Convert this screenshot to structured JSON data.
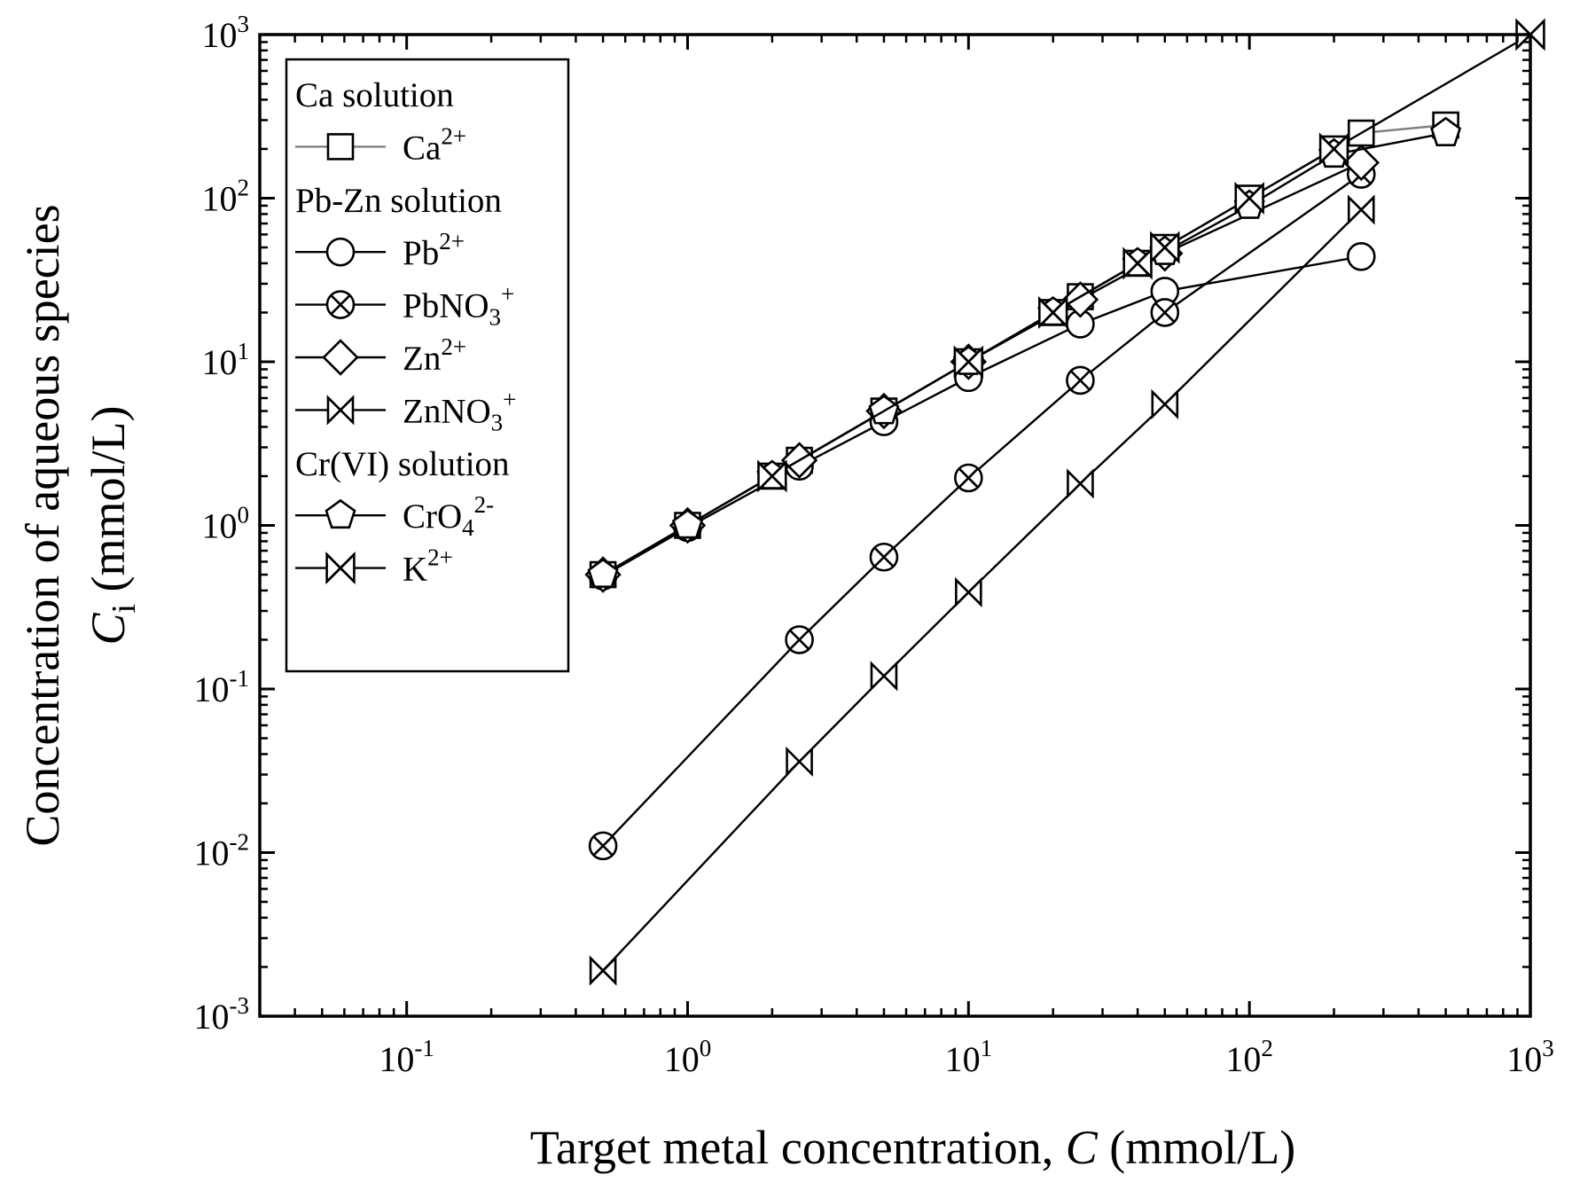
{
  "chart_data": {
    "type": "line",
    "title": "",
    "xlabel": "Target metal concentration, C (mmol/L)",
    "xlabel_prefix": "Target metal concentration, ",
    "xlabel_var": "C",
    "xlabel_suffix": " (mmol/L)",
    "ylabel_line1": "Concentration of aqueous species",
    "ylabel_var": "C",
    "ylabel_sub": "i",
    "ylabel_suffix": " (mmol/L)",
    "x_scale": "log",
    "y_scale": "log",
    "xlim": [
      0.03,
      1000
    ],
    "ylim": [
      0.001,
      1000
    ],
    "x_ticks": [
      {
        "value": 0.1,
        "base": "10",
        "exp": "-1"
      },
      {
        "value": 1,
        "base": "10",
        "exp": "0"
      },
      {
        "value": 10,
        "base": "10",
        "exp": "1"
      },
      {
        "value": 100,
        "base": "10",
        "exp": "2"
      },
      {
        "value": 1000,
        "base": "10",
        "exp": "3"
      }
    ],
    "y_ticks": [
      {
        "value": 0.001,
        "base": "10",
        "exp": "-3"
      },
      {
        "value": 0.01,
        "base": "10",
        "exp": "-2"
      },
      {
        "value": 0.1,
        "base": "10",
        "exp": "-1"
      },
      {
        "value": 1,
        "base": "10",
        "exp": "0"
      },
      {
        "value": 10,
        "base": "10",
        "exp": "1"
      },
      {
        "value": 100,
        "base": "10",
        "exp": "2"
      },
      {
        "value": 1000,
        "base": "10",
        "exp": "3"
      }
    ],
    "grid": false,
    "legend_position": "top-left",
    "series": [
      {
        "name": "Ca2+",
        "label": "Ca",
        "sup": "2+",
        "sub": "",
        "group": "Ca solution",
        "marker": "square",
        "color": "#7f7f7f",
        "x": [
          0.5,
          1,
          2,
          2.5,
          5,
          10,
          20,
          25,
          40,
          50,
          100,
          200,
          250,
          500
        ],
        "y": [
          0.5,
          1,
          2,
          2.5,
          5,
          10,
          20,
          25,
          40,
          50,
          100,
          200,
          250,
          280
        ]
      },
      {
        "name": "Pb2+",
        "label": "Pb",
        "sup": "2+",
        "sub": "",
        "group": "Pb-Zn solution",
        "marker": "circle",
        "color": "#000000",
        "x": [
          0.5,
          1,
          2.5,
          5,
          10,
          25,
          50,
          250
        ],
        "y": [
          0.49,
          0.97,
          2.3,
          4.3,
          8.0,
          17,
          27,
          44
        ]
      },
      {
        "name": "PbNO3+",
        "label": "PbNO",
        "sup": "+",
        "sub": "3",
        "group": "Pb-Zn solution",
        "marker": "circle-x",
        "color": "#000000",
        "x": [
          0.5,
          2.5,
          5,
          10,
          25,
          50,
          250
        ],
        "y": [
          0.011,
          0.2,
          0.64,
          1.95,
          7.7,
          20,
          140
        ]
      },
      {
        "name": "Zn2+",
        "label": "Zn",
        "sup": "2+",
        "sub": "",
        "group": "Pb-Zn solution",
        "marker": "diamond",
        "color": "#000000",
        "x": [
          0.5,
          1,
          2.5,
          5,
          10,
          25,
          50,
          250
        ],
        "y": [
          0.5,
          1,
          2.5,
          5,
          10,
          24,
          46,
          165
        ]
      },
      {
        "name": "ZnNO3+",
        "label": "ZnNO",
        "sup": "+",
        "sub": "3",
        "group": "Pb-Zn solution",
        "marker": "square-x",
        "color": "#000000",
        "x": [
          0.5,
          2.5,
          5,
          10,
          25,
          50,
          250
        ],
        "y": [
          0.0019,
          0.036,
          0.12,
          0.39,
          1.8,
          5.5,
          85
        ]
      },
      {
        "name": "CrO42-",
        "label": "CrO",
        "sup": "2-",
        "sub": "4",
        "group": "Cr(VI) solution",
        "marker": "pentagon",
        "color": "#000000",
        "x": [
          0.5,
          1,
          2,
          5,
          10,
          20,
          40,
          50,
          100,
          200,
          500
        ],
        "y": [
          0.5,
          1,
          2,
          5,
          10,
          20,
          40,
          47,
          90,
          185,
          250
        ]
      },
      {
        "name": "K2+",
        "label": "K",
        "sup": "2+",
        "sub": "",
        "group": "Cr(VI) solution",
        "marker": "x",
        "color": "#000000",
        "x": [
          2,
          10,
          20,
          40,
          50,
          100,
          200,
          1000
        ],
        "y": [
          2,
          10,
          20,
          40,
          50,
          100,
          200,
          1000
        ]
      }
    ],
    "legend": {
      "groups": [
        "Ca solution",
        "Pb-Zn solution",
        "Cr(VI) solution"
      ]
    }
  }
}
